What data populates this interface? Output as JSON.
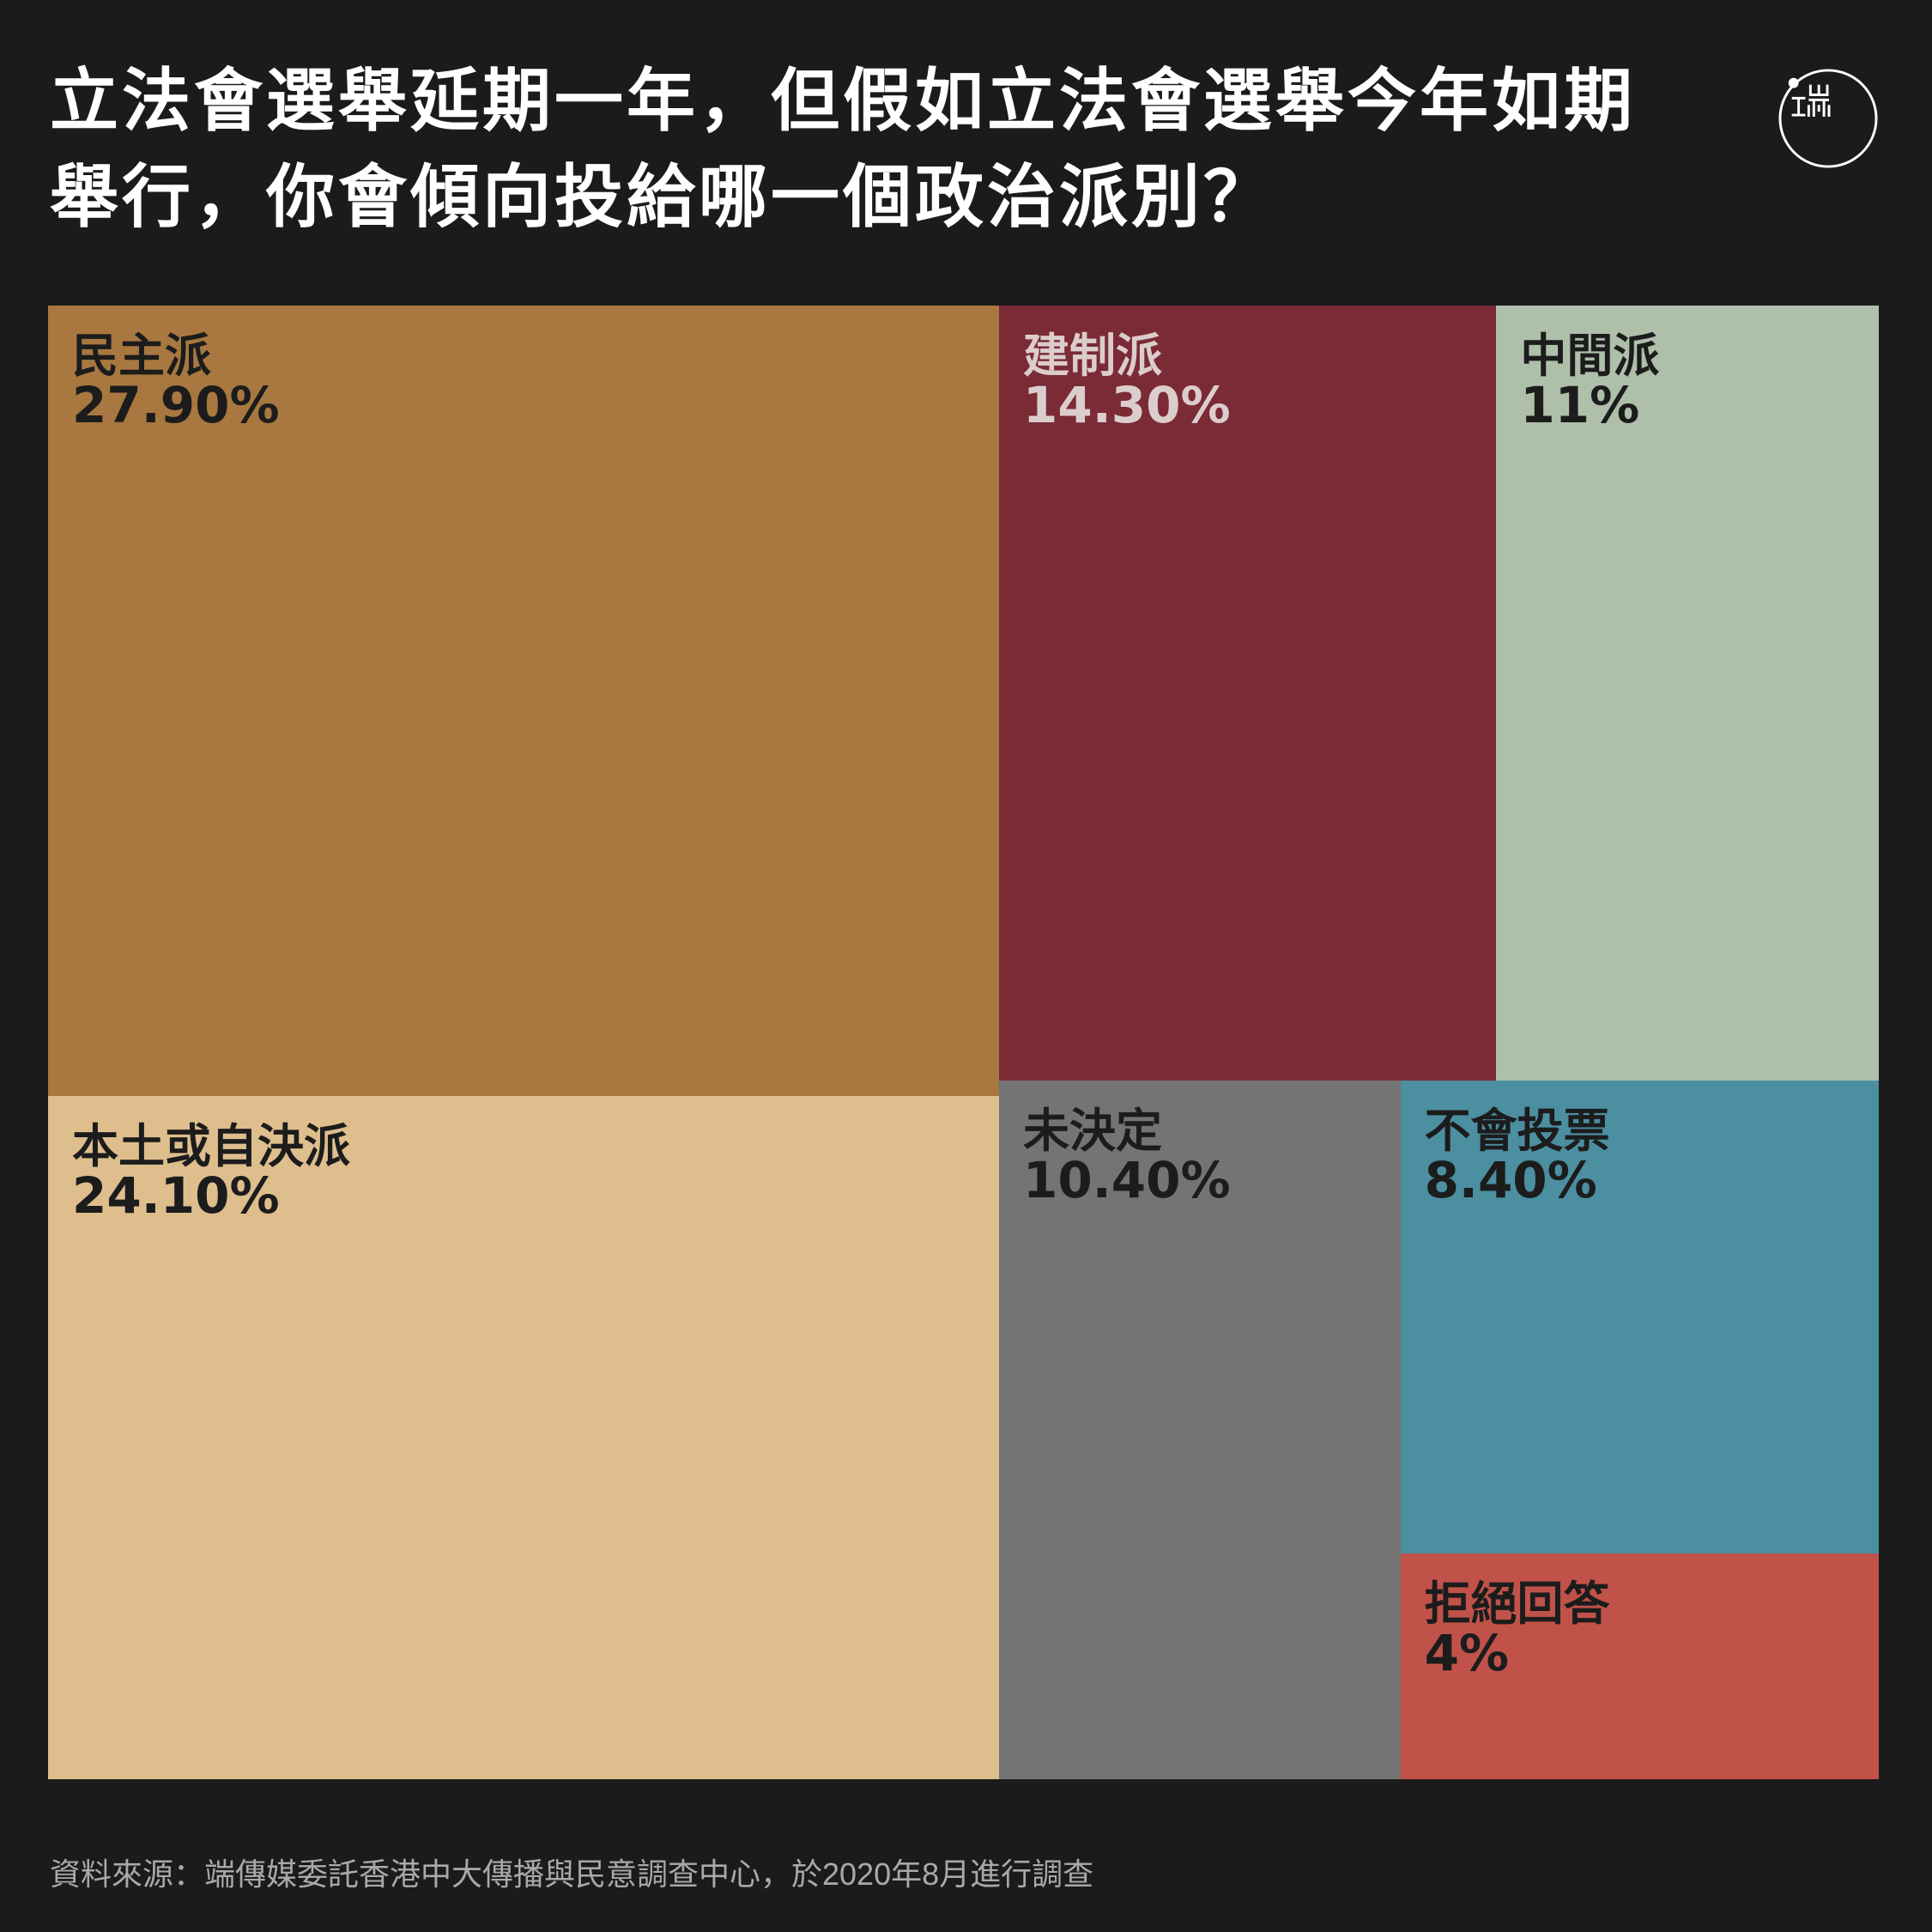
{
  "title_lines": [
    "立法會選舉延期一年，但假如立法會選舉今年如期",
    "舉行，你會傾向投給哪一個政治派別？"
  ],
  "source": "資料來源：端傳媒委託香港中大傳播與民意調查中心，於2020年8月進行調查",
  "logo_icon": "initium-logo-icon",
  "chart_data": {
    "type": "treemap",
    "unit": "%",
    "items": [
      {
        "name": "民主派",
        "label": "27.90%",
        "value": 27.9,
        "color": "#a87840",
        "text_color": "#1c1c1c"
      },
      {
        "name": "本土或自決派",
        "label": "24.10%",
        "value": 24.1,
        "color": "#dfbe8e",
        "text_color": "#1c1c1c"
      },
      {
        "name": "建制派",
        "label": "14.30%",
        "value": 14.3,
        "color": "#7a2b35",
        "text_color": "#dccdcd"
      },
      {
        "name": "中間派",
        "label": "11%",
        "value": 11.0,
        "color": "#aebfaa",
        "text_color": "#1c1c1c"
      },
      {
        "name": "未決定",
        "label": "10.40%",
        "value": 10.4,
        "color": "#747474",
        "text_color": "#1c1c1c"
      },
      {
        "name": "不會投票",
        "label": "8.40%",
        "value": 8.4,
        "color": "#4b8fa0",
        "text_color": "#1c1c1c"
      },
      {
        "name": "拒絕回答",
        "label": "4%",
        "value": 4.0,
        "color": "#c0524a",
        "text_color": "#1c1c1c"
      }
    ]
  }
}
